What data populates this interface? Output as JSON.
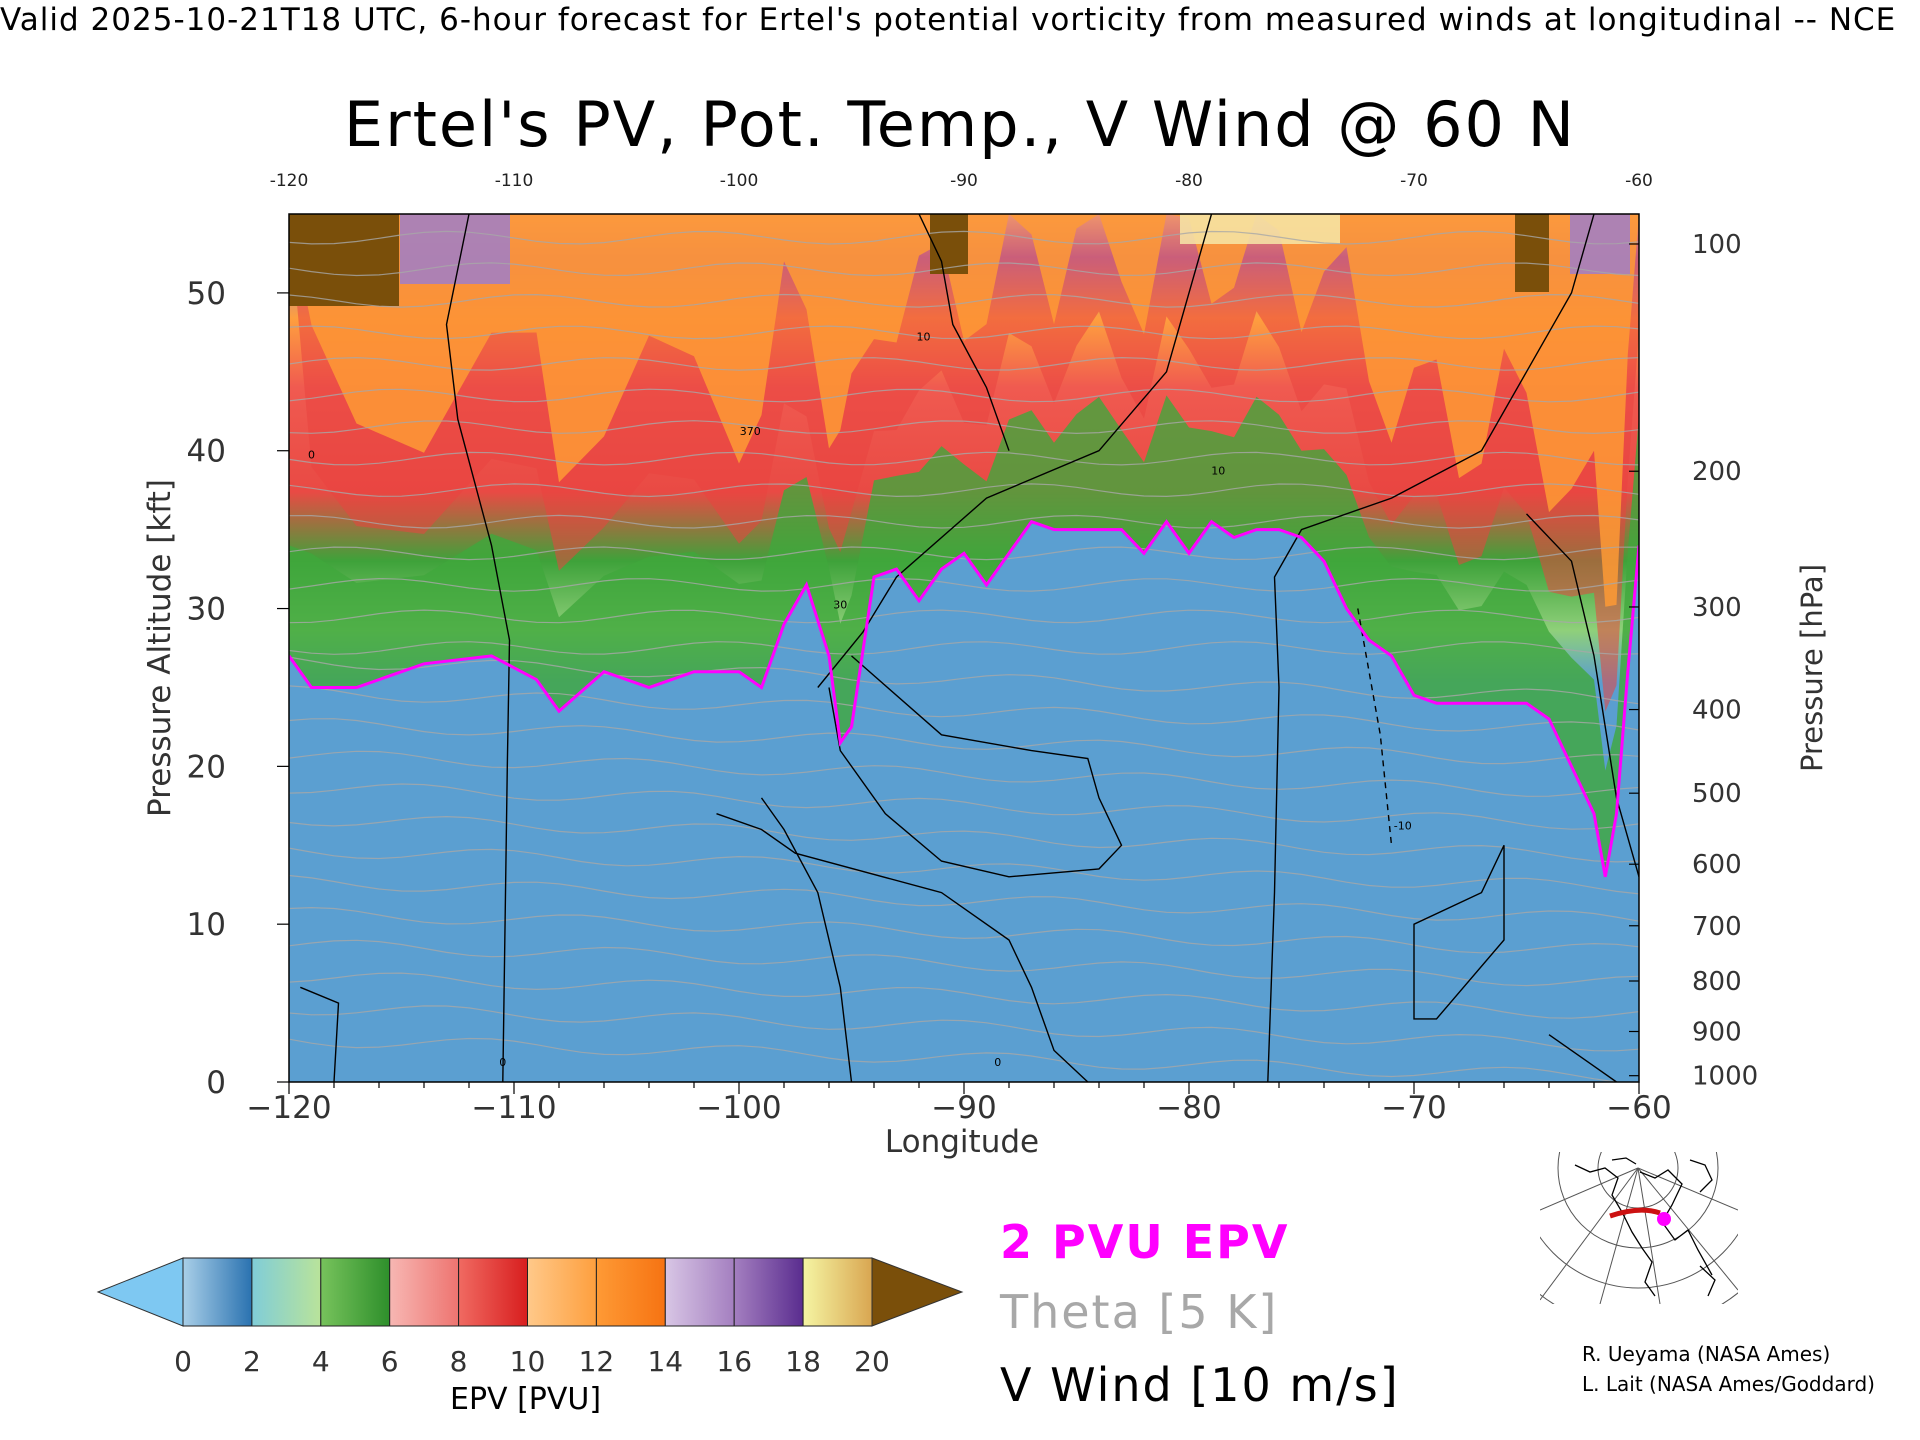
{
  "header": {
    "banner": "Valid 2025-10-21T18 UTC, 6-hour forecast for Ertel's potential vorticity from measured winds at longitudinal -- NCE"
  },
  "chart_data": {
    "type": "heatmap",
    "title": "Ertel's PV, Pot. Temp., V Wind @ 60 N",
    "xlabel": "Longitude",
    "ylabel": "Pressure Altitude [kft]",
    "y2label": "Pressure [hPa]",
    "xlim": [
      -120,
      -60
    ],
    "ylim": [
      0,
      55
    ],
    "x_ticks": [
      "-120",
      "-110",
      "-100",
      "-90",
      "-80",
      "-70",
      "-60"
    ],
    "x_top_ticks": [
      "-120",
      "-110",
      "-100",
      "-90",
      "-80",
      "-70",
      "-60"
    ],
    "y_ticks": [
      "0",
      "10",
      "20",
      "30",
      "40",
      "50"
    ],
    "pressure_ticks": [
      {
        "label": "100",
        "kft": 53.1
      },
      {
        "label": "200",
        "kft": 38.7
      },
      {
        "label": "300",
        "kft": 30.1
      },
      {
        "label": "400",
        "kft": 23.6
      },
      {
        "label": "500",
        "kft": 18.3
      },
      {
        "label": "600",
        "kft": 13.8
      },
      {
        "label": "700",
        "kft": 9.9
      },
      {
        "label": "800",
        "kft": 6.4
      },
      {
        "label": "900",
        "kft": 3.2
      },
      {
        "label": "1000",
        "kft": 0.4
      }
    ],
    "tropopause_2pvu_kft": {
      "lon": [
        -120,
        -119,
        -117,
        -114,
        -111,
        -109,
        -108,
        -106,
        -104,
        -102,
        -100,
        -99,
        -98,
        -97,
        -96,
        -95.5,
        -95,
        -94,
        -93,
        -92,
        -91,
        -90,
        -89,
        -88,
        -87,
        -86,
        -85,
        -84,
        -83,
        -82,
        -81,
        -80,
        -79,
        -78,
        -77,
        -76,
        -75,
        -74,
        -73,
        -72,
        -71,
        -70,
        -69,
        -68,
        -67,
        -66,
        -65,
        -64,
        -63,
        -62,
        -61.5,
        -61,
        -60.5,
        -60
      ],
      "values": [
        27,
        25,
        25,
        26.5,
        27,
        25.5,
        23.5,
        26,
        25,
        26,
        26,
        25,
        29,
        31.5,
        27,
        21.5,
        22.5,
        32,
        32.5,
        30.5,
        32.5,
        33.5,
        31.5,
        33.5,
        35.5,
        35,
        35,
        35,
        35,
        33.5,
        35.5,
        33.5,
        35.5,
        34.5,
        35,
        35,
        34.5,
        33,
        30,
        28,
        27,
        24.5,
        24,
        24,
        24,
        24,
        24,
        23,
        20,
        17,
        13,
        17,
        26,
        34
      ]
    },
    "contour_labels": [
      "0",
      "10",
      "30",
      "-10",
      "370"
    ],
    "colorbar": {
      "title": "EPV [PVU]",
      "ticks": [
        "0",
        "2",
        "4",
        "6",
        "8",
        "10",
        "12",
        "14",
        "16",
        "18",
        "20"
      ],
      "bins": [
        {
          "from": 0,
          "to": 2,
          "start": "#a9cfe8",
          "end": "#2a72b0"
        },
        {
          "from": 2,
          "to": 4,
          "start": "#80cdd8",
          "end": "#b9e39a"
        },
        {
          "from": 4,
          "to": 6,
          "start": "#77c35c",
          "end": "#2e8f2b"
        },
        {
          "from": 6,
          "to": 8,
          "start": "#f7b7b3",
          "end": "#ee7470"
        },
        {
          "from": 8,
          "to": 10,
          "start": "#f06a62",
          "end": "#d81e1e"
        },
        {
          "from": 10,
          "to": 12,
          "start": "#ffc98a",
          "end": "#fe9f3e"
        },
        {
          "from": 12,
          "to": 14,
          "start": "#fe9a35",
          "end": "#f67312"
        },
        {
          "from": 14,
          "to": 16,
          "start": "#d8c6e5",
          "end": "#a47fc0"
        },
        {
          "from": 16,
          "to": 18,
          "start": "#a47fc0",
          "end": "#5a2d8f"
        },
        {
          "from": 18,
          "to": 20,
          "start": "#f5f5a3",
          "end": "#d9a651"
        }
      ],
      "under_color": "#7ec8f2",
      "over_color": "#7a4f0a"
    }
  },
  "legend": {
    "pvu": "2 PVU EPV",
    "theta": "Theta [5 K]",
    "wind": "V Wind [10 m/s]"
  },
  "credits": {
    "line1": "R. Ueyama (NASA Ames)",
    "line2": "L. Lait (NASA Ames/Goddard)"
  },
  "colors": {
    "tropopause": "#ff00ff",
    "theta": "#a8a8a8",
    "wind": "#000000",
    "transect": "#cc1111"
  }
}
